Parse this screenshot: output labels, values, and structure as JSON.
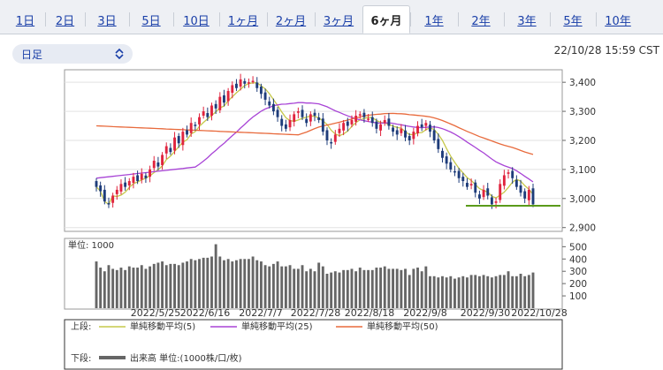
{
  "tabs": [
    {
      "label": "1日",
      "active": false
    },
    {
      "label": "2日",
      "active": false
    },
    {
      "label": "3日",
      "active": false
    },
    {
      "label": "5日",
      "active": false
    },
    {
      "label": "10日",
      "active": false
    },
    {
      "label": "1ヶ月",
      "active": false
    },
    {
      "label": "2ヶ月",
      "active": false
    },
    {
      "label": "3ヶ月",
      "active": false
    },
    {
      "label": "6ヶ月",
      "active": true
    },
    {
      "label": "1年",
      "active": false
    },
    {
      "label": "2年",
      "active": false
    },
    {
      "label": "3年",
      "active": false
    },
    {
      "label": "5年",
      "active": false
    },
    {
      "label": "10年",
      "active": false
    }
  ],
  "period_select": {
    "value": "日足",
    "icon": "chevron-updown-icon"
  },
  "timestamp": "22/10/28 15:59 CST",
  "chart_data": {
    "type": "candlestick",
    "price_axis": {
      "ticks": [
        2900,
        3000,
        3100,
        3200,
        3300,
        3400
      ],
      "labels": [
        "2,900",
        "3,000",
        "3,100",
        "3,200",
        "3,300",
        "3,400"
      ],
      "range": [
        2890,
        3440
      ]
    },
    "volume_axis": {
      "ticks": [
        100,
        200,
        300,
        400,
        500
      ],
      "range": [
        0,
        560
      ]
    },
    "volume_unit_label": "単位: 1000",
    "x_tick_labels": [
      "2022/5/25",
      "2022/6/16",
      "2022/7/7",
      "2022/7/28",
      "2022/8/18",
      "2022/9/8",
      "2022/9/30",
      "2022/10/28"
    ],
    "close": [
      3040,
      3025,
      2990,
      2980,
      3010,
      3030,
      3050,
      3040,
      3060,
      3075,
      3060,
      3085,
      3070,
      3100,
      3130,
      3110,
      3150,
      3180,
      3160,
      3210,
      3190,
      3230,
      3220,
      3260,
      3250,
      3280,
      3300,
      3280,
      3320,
      3310,
      3350,
      3330,
      3370,
      3390,
      3380,
      3410,
      3395,
      3400,
      3405,
      3380,
      3360,
      3340,
      3320,
      3300,
      3280,
      3250,
      3240,
      3270,
      3290,
      3300,
      3280,
      3260,
      3290,
      3285,
      3270,
      3230,
      3200,
      3190,
      3220,
      3240,
      3260,
      3250,
      3270,
      3285,
      3290,
      3280,
      3275,
      3260,
      3240,
      3255,
      3270,
      3250,
      3230,
      3220,
      3240,
      3210,
      3200,
      3230,
      3250,
      3245,
      3260,
      3230,
      3200,
      3170,
      3140,
      3120,
      3100,
      3090,
      3070,
      3060,
      3040,
      3050,
      3020,
      3000,
      3030,
      3010,
      2980,
      2990,
      3050,
      3080,
      3090,
      3070,
      3040,
      3020,
      3000,
      3030,
      2980
    ],
    "volume": [
      380,
      330,
      300,
      350,
      320,
      310,
      330,
      310,
      340,
      330,
      330,
      350,
      320,
      340,
      360,
      370,
      380,
      350,
      360,
      360,
      350,
      370,
      380,
      400,
      390,
      400,
      410,
      410,
      420,
      520,
      420,
      390,
      400,
      380,
      390,
      400,
      400,
      400,
      420,
      390,
      380,
      350,
      340,
      360,
      380,
      340,
      340,
      350,
      320,
      320,
      350,
      300,
      320,
      300,
      370,
      340,
      280,
      290,
      300,
      290,
      310,
      310,
      320,
      300,
      330,
      310,
      310,
      310,
      330,
      330,
      340,
      320,
      320,
      320,
      310,
      320,
      270,
      320,
      330,
      300,
      340,
      260,
      260,
      250,
      260,
      250,
      260,
      240,
      250,
      260,
      250,
      270,
      270,
      260,
      270,
      260,
      250,
      260,
      270,
      270,
      300,
      260,
      260,
      280,
      260,
      270,
      290
    ],
    "ma_lines": [
      {
        "name": "単純移動平均(5)",
        "color": "#c6c84a"
      },
      {
        "name": "単純移動平均(25)",
        "color": "#a844d6"
      },
      {
        "name": "単純移動平均(50)",
        "color": "#e86a3c"
      }
    ],
    "horizontal_line": {
      "value": 2975,
      "color": "#5a9a1a"
    },
    "colors": {
      "up": "#e0243e",
      "down": "#1e3c7a",
      "volume": "#666666"
    }
  },
  "legend": {
    "top_label": "上段:",
    "bottom_label": "下段:",
    "ma5": "単純移動平均(5)",
    "ma25": "単純移動平均(25)",
    "ma50": "単純移動平均(50)",
    "volume": "出来高 単位:(1000株/口/枚)"
  }
}
